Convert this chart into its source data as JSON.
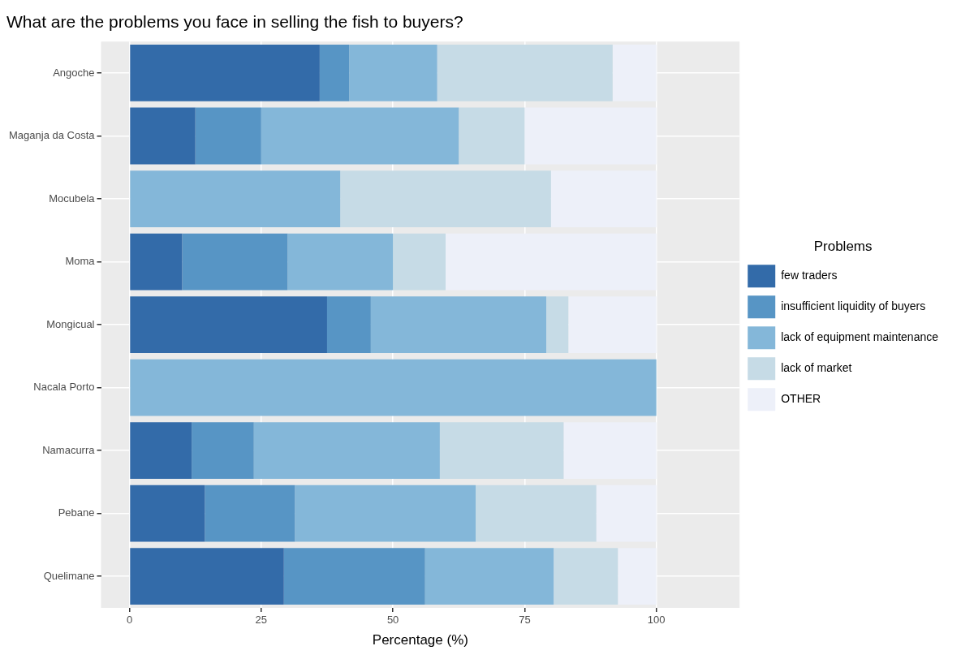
{
  "chart_data": {
    "type": "bar",
    "orientation": "horizontal",
    "stacked": true,
    "title": "What are the problems you face in selling the fish to buyers?",
    "xlabel": "Percentage (%)",
    "legend_title": "Problems",
    "categories": [
      "Angoche",
      "Maganja da Costa",
      "Mocubela",
      "Moma",
      "Mongicual",
      "Nacala Porto",
      "Namacurra",
      "Pebane",
      "Quelimane"
    ],
    "series": [
      {
        "name": "few traders",
        "color": "#336ba9",
        "values": [
          36.1,
          12.5,
          0,
          10,
          37.5,
          0,
          11.8,
          14.3,
          29.3
        ]
      },
      {
        "name": "insufficient liquidity of buyers",
        "color": "#5795c5",
        "values": [
          5.6,
          12.5,
          0,
          20,
          8.3,
          0,
          11.8,
          17.1,
          26.8
        ]
      },
      {
        "name": "lack of equipment maintenance",
        "color": "#84b7d9",
        "values": [
          16.7,
          37.5,
          40,
          20,
          33.3,
          100,
          35.3,
          34.3,
          24.4
        ]
      },
      {
        "name": "lack of market",
        "color": "#c6dbe6",
        "values": [
          33.3,
          12.5,
          40,
          10,
          4.2,
          0,
          23.5,
          22.9,
          12.2
        ]
      },
      {
        "name": "OTHER",
        "color": "#edf0f9",
        "values": [
          8.3,
          25,
          20,
          40,
          16.7,
          0,
          17.6,
          11.4,
          7.3
        ]
      }
    ],
    "xlim": [
      -5.4,
      115.8
    ],
    "xticks": [
      0,
      25,
      50,
      75,
      100
    ],
    "grid": true,
    "legend": "right"
  }
}
